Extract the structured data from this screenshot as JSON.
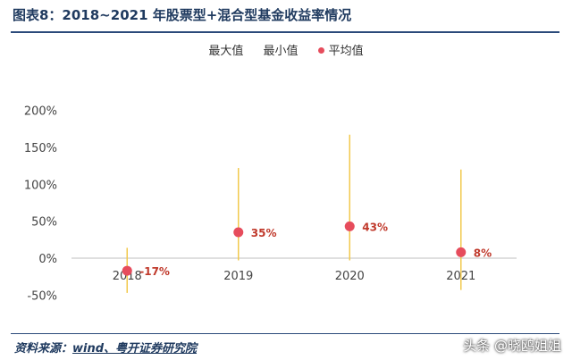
{
  "header": {
    "title": "图表8：2018~2021 年股票型+混合型基金收益率情况"
  },
  "legend": {
    "max_label": "最大值",
    "min_label": "最小值",
    "avg_label": "平均值"
  },
  "source": {
    "prefix": "资料来源：",
    "link": "wind、粤开证券研究院"
  },
  "watermark": {
    "text": "头条 @晓鸥姐姐"
  },
  "colors": {
    "range_line": "#f2c94c",
    "avg_point": "#e64c5c",
    "label_text": "#c0392b",
    "title": "#1f3a5f"
  },
  "chart_data": {
    "type": "scatter",
    "categories": [
      "2018",
      "2019",
      "2020",
      "2021"
    ],
    "series": [
      {
        "name": "最大值",
        "values": [
          14,
          122,
          167,
          120
        ]
      },
      {
        "name": "最小值",
        "values": [
          -47,
          -3,
          -3,
          -43
        ]
      },
      {
        "name": "平均值",
        "values": [
          -17,
          35,
          43,
          8
        ]
      }
    ],
    "data_labels": [
      "-17%",
      "35%",
      "43%",
      "8%"
    ],
    "y_ticks": [
      "-50%",
      "0%",
      "50%",
      "100%",
      "150%",
      "200%"
    ],
    "ylim": [
      -50,
      200
    ],
    "grid": false,
    "legend_position": "top"
  }
}
